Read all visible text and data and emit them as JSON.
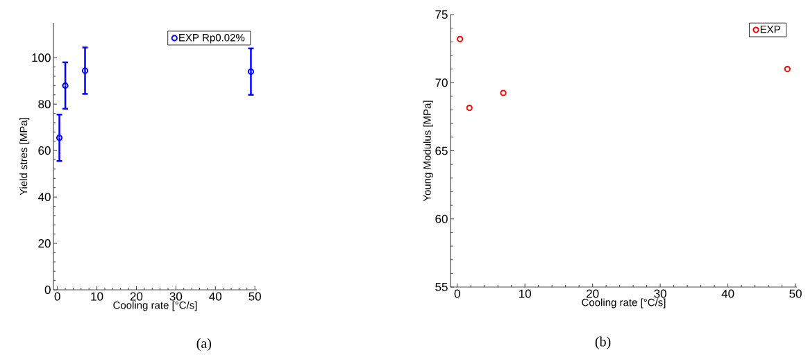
{
  "chart_data": [
    {
      "type": "scatter",
      "xlabel": "Cooling rate [°C/s]",
      "ylabel": "Yield stres [MPa]",
      "x": [
        0.5,
        2,
        7,
        49
      ],
      "series": [
        {
          "name": "EXP Rp0.02%",
          "color": "#0000ff",
          "values": [
            65.5,
            88,
            94.4,
            94
          ],
          "errors": [
            10,
            10,
            10,
            10
          ]
        }
      ],
      "xlim": [
        -1,
        50.5
      ],
      "ylim": [
        0,
        115
      ],
      "xticks": [
        0,
        10,
        20,
        30,
        40,
        50
      ],
      "yticks": [
        0,
        20,
        40,
        60,
        80,
        100
      ],
      "legend": "top right",
      "marker": "circle",
      "annotations": [
        "(a)"
      ]
    },
    {
      "type": "scatter",
      "xlabel": "Cooling rate [°C/s]",
      "ylabel": "Young Modulus [MPa]",
      "x": [
        0.4,
        1.8,
        6.8,
        48.8
      ],
      "series": [
        {
          "name": "EXP",
          "color": "#ff0000",
          "values": [
            73.2,
            68.15,
            69.25,
            71
          ]
        }
      ],
      "xlim": [
        -1,
        50.2
      ],
      "ylim": [
        55,
        75
      ],
      "xticks": [
        0,
        10,
        20,
        30,
        40,
        50
      ],
      "yticks": [
        55,
        60,
        65,
        70,
        75
      ],
      "legend": "top right",
      "marker": "circle",
      "annotations": [
        "(b)"
      ]
    }
  ]
}
